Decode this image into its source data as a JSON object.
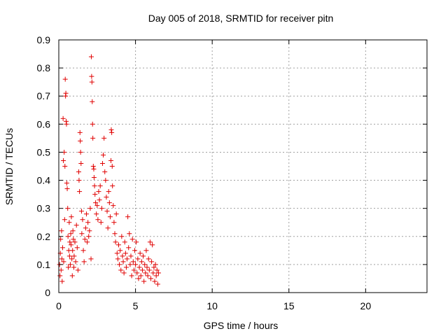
{
  "chart_data": {
    "type": "scatter",
    "title": "Day 005 of 2018, SRMTID for receiver pitn",
    "xlabel": "GPS time / hours",
    "ylabel": "SRMTID / TECUs",
    "xlim": [
      0,
      24
    ],
    "ylim": [
      0,
      0.9
    ],
    "x_ticks": [
      0,
      5,
      10,
      15,
      20
    ],
    "x_tick_labels": [
      "0",
      "5",
      "10",
      "15",
      "20"
    ],
    "y_ticks": [
      0,
      0.1,
      0.2,
      0.3,
      0.4,
      0.5,
      0.6,
      0.7,
      0.8,
      0.9
    ],
    "y_tick_labels": [
      "0",
      "0.1",
      "0.2",
      "0.3",
      "0.4",
      "0.5",
      "0.6",
      "0.7",
      "0.8",
      "0.9"
    ],
    "grid": true,
    "marker": "+",
    "marker_color": "#e00000",
    "series": [
      {
        "name": "SRMTID",
        "points": [
          [
            0.05,
            0.1
          ],
          [
            0.08,
            0.06
          ],
          [
            0.1,
            0.14
          ],
          [
            0.12,
            0.19
          ],
          [
            0.15,
            0.08
          ],
          [
            0.18,
            0.22
          ],
          [
            0.2,
            0.12
          ],
          [
            0.22,
            0.04
          ],
          [
            0.25,
            0.16
          ],
          [
            0.28,
            0.62
          ],
          [
            0.3,
            0.47
          ],
          [
            0.32,
            0.11
          ],
          [
            0.35,
            0.5
          ],
          [
            0.38,
            0.26
          ],
          [
            0.4,
            0.45
          ],
          [
            0.42,
            0.76
          ],
          [
            0.44,
            0.7
          ],
          [
            0.46,
            0.71
          ],
          [
            0.48,
            0.61
          ],
          [
            0.5,
            0.6
          ],
          [
            0.52,
            0.39
          ],
          [
            0.55,
            0.37
          ],
          [
            0.58,
            0.3
          ],
          [
            0.6,
            0.2
          ],
          [
            0.62,
            0.09
          ],
          [
            0.65,
            0.15
          ],
          [
            0.68,
            0.25
          ],
          [
            0.7,
            0.13
          ],
          [
            0.72,
            0.18
          ],
          [
            0.75,
            0.1
          ],
          [
            0.78,
            0.21
          ],
          [
            0.8,
            0.17
          ],
          [
            0.82,
            0.27
          ],
          [
            0.85,
            0.12
          ],
          [
            0.88,
            0.06
          ],
          [
            0.9,
            0.15
          ],
          [
            0.92,
            0.22
          ],
          [
            0.95,
            0.19
          ],
          [
            0.98,
            0.09
          ],
          [
            1.0,
            0.13
          ],
          [
            1.05,
            0.18
          ],
          [
            1.1,
            0.11
          ],
          [
            1.15,
            0.24
          ],
          [
            1.2,
            0.16
          ],
          [
            1.25,
            0.08
          ],
          [
            1.3,
            0.43
          ],
          [
            1.32,
            0.4
          ],
          [
            1.35,
            0.36
          ],
          [
            1.38,
            0.57
          ],
          [
            1.4,
            0.54
          ],
          [
            1.42,
            0.5
          ],
          [
            1.45,
            0.46
          ],
          [
            1.48,
            0.29
          ],
          [
            1.5,
            0.21
          ],
          [
            1.55,
            0.26
          ],
          [
            1.6,
            0.15
          ],
          [
            1.65,
            0.11
          ],
          [
            1.7,
            0.19
          ],
          [
            1.75,
            0.23
          ],
          [
            1.8,
            0.28
          ],
          [
            1.85,
            0.18
          ],
          [
            1.9,
            0.25
          ],
          [
            1.95,
            0.2
          ],
          [
            2.0,
            0.22
          ],
          [
            2.05,
            0.3
          ],
          [
            2.1,
            0.12
          ],
          [
            2.12,
            0.84
          ],
          [
            2.14,
            0.77
          ],
          [
            2.16,
            0.75
          ],
          [
            2.18,
            0.68
          ],
          [
            2.2,
            0.6
          ],
          [
            2.22,
            0.55
          ],
          [
            2.25,
            0.45
          ],
          [
            2.28,
            0.44
          ],
          [
            2.3,
            0.41
          ],
          [
            2.33,
            0.38
          ],
          [
            2.36,
            0.35
          ],
          [
            2.4,
            0.32
          ],
          [
            2.45,
            0.28
          ],
          [
            2.5,
            0.31
          ],
          [
            2.55,
            0.26
          ],
          [
            2.6,
            0.36
          ],
          [
            2.65,
            0.33
          ],
          [
            2.7,
            0.38
          ],
          [
            2.75,
            0.25
          ],
          [
            2.8,
            0.3
          ],
          [
            2.85,
            0.46
          ],
          [
            2.9,
            0.49
          ],
          [
            2.95,
            0.55
          ],
          [
            3.0,
            0.43
          ],
          [
            3.05,
            0.4
          ],
          [
            3.1,
            0.34
          ],
          [
            3.15,
            0.29
          ],
          [
            3.2,
            0.23
          ],
          [
            3.25,
            0.36
          ],
          [
            3.3,
            0.32
          ],
          [
            3.35,
            0.27
          ],
          [
            3.4,
            0.47
          ],
          [
            3.42,
            0.58
          ],
          [
            3.45,
            0.57
          ],
          [
            3.48,
            0.45
          ],
          [
            3.5,
            0.38
          ],
          [
            3.55,
            0.31
          ],
          [
            3.6,
            0.25
          ],
          [
            3.65,
            0.21
          ],
          [
            3.7,
            0.18
          ],
          [
            3.75,
            0.28
          ],
          [
            3.8,
            0.14
          ],
          [
            3.85,
            0.12
          ],
          [
            3.9,
            0.17
          ],
          [
            3.95,
            0.1
          ],
          [
            4.0,
            0.15
          ],
          [
            4.05,
            0.08
          ],
          [
            4.1,
            0.2
          ],
          [
            4.15,
            0.13
          ],
          [
            4.2,
            0.11
          ],
          [
            4.25,
            0.07
          ],
          [
            4.3,
            0.18
          ],
          [
            4.35,
            0.14
          ],
          [
            4.4,
            0.09
          ],
          [
            4.45,
            0.12
          ],
          [
            4.5,
            0.27
          ],
          [
            4.55,
            0.16
          ],
          [
            4.6,
            0.21
          ],
          [
            4.65,
            0.1
          ],
          [
            4.7,
            0.13
          ],
          [
            4.75,
            0.06
          ],
          [
            4.8,
            0.19
          ],
          [
            4.85,
            0.11
          ],
          [
            4.9,
            0.08
          ],
          [
            4.95,
            0.15
          ],
          [
            5.0,
            0.1
          ],
          [
            5.05,
            0.18
          ],
          [
            5.1,
            0.07
          ],
          [
            5.15,
            0.12
          ],
          [
            5.2,
            0.05
          ],
          [
            5.25,
            0.09
          ],
          [
            5.3,
            0.14
          ],
          [
            5.35,
            0.06
          ],
          [
            5.4,
            0.11
          ],
          [
            5.45,
            0.08
          ],
          [
            5.5,
            0.13
          ],
          [
            5.55,
            0.04
          ],
          [
            5.6,
            0.1
          ],
          [
            5.65,
            0.07
          ],
          [
            5.7,
            0.15
          ],
          [
            5.75,
            0.09
          ],
          [
            5.8,
            0.06
          ],
          [
            5.85,
            0.12
          ],
          [
            5.9,
            0.08
          ],
          [
            5.95,
            0.18
          ],
          [
            6.0,
            0.05
          ],
          [
            6.05,
            0.11
          ],
          [
            6.1,
            0.17
          ],
          [
            6.15,
            0.07
          ],
          [
            6.2,
            0.09
          ],
          [
            6.25,
            0.04
          ],
          [
            6.3,
            0.1
          ],
          [
            6.35,
            0.06
          ],
          [
            6.4,
            0.08
          ],
          [
            6.45,
            0.03
          ],
          [
            6.5,
            0.07
          ]
        ]
      }
    ]
  }
}
